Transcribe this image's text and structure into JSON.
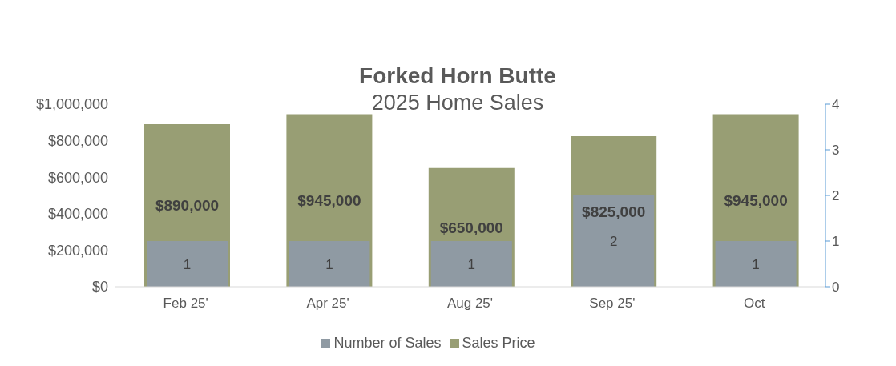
{
  "chart_data": {
    "type": "bar",
    "title": "Forked Horn Butte",
    "subtitle": "2025 Home Sales",
    "categories": [
      "Feb 25'",
      "Apr 25'",
      "Aug 25'",
      "Sep 25'",
      "Oct"
    ],
    "series": [
      {
        "name": "Sales Price",
        "color": "#989e74",
        "values": [
          890000,
          945000,
          650000,
          825000,
          945000
        ],
        "value_labels": [
          "$890,000",
          "$945,000",
          "$650,000",
          "$825,000",
          "$945,000"
        ]
      },
      {
        "name": "Number of Sales",
        "color": "#8f9aa3",
        "axis": "y2",
        "values": [
          1,
          1,
          1,
          2,
          1
        ],
        "value_labels": [
          "1",
          "1",
          "1",
          "2",
          "1"
        ]
      }
    ],
    "ylim": [
      0,
      1000000
    ],
    "yticks": [
      {
        "value": 0,
        "label": "$0"
      },
      {
        "value": 200000,
        "label": "$200,000"
      },
      {
        "value": 400000,
        "label": "$400,000"
      },
      {
        "value": 600000,
        "label": "$600,000"
      },
      {
        "value": 800000,
        "label": "$800,000"
      },
      {
        "value": 1000000,
        "label": "$1,000,000"
      }
    ],
    "y2lim": [
      0,
      4
    ],
    "y2ticks": [
      0,
      1,
      2,
      3,
      4
    ],
    "grid": false,
    "legend": "bottom"
  }
}
